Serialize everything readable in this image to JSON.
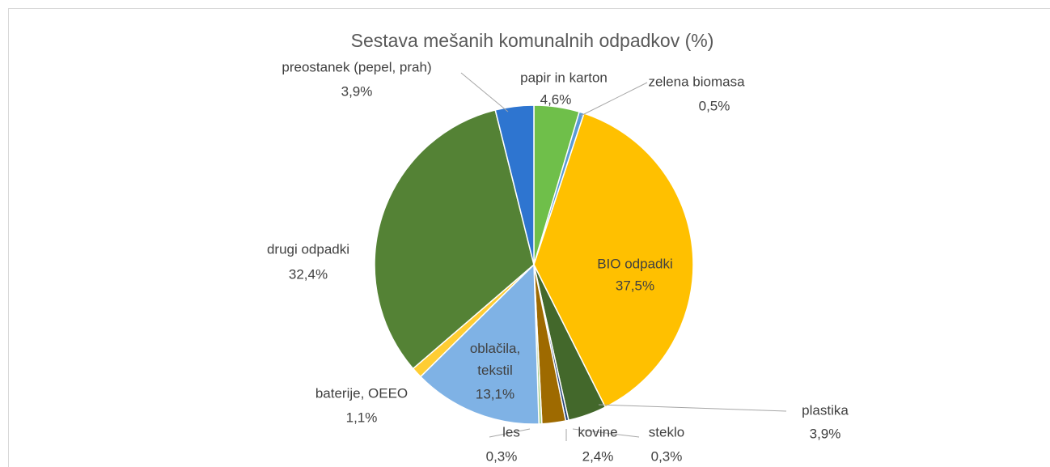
{
  "chart_data": {
    "type": "pie",
    "title": "Sestava mešanih komunalnih odpadkov (%)",
    "categories": [
      "papir in karton",
      "zelena biomasa",
      "BIO odpadki",
      "plastika",
      "steklo",
      "kovine",
      "les",
      "oblačila, tekstil",
      "baterije, OEEO",
      "drugi odpadki",
      "preostanek (pepel, prah)"
    ],
    "values": [
      4.6,
      0.5,
      37.5,
      3.9,
      0.3,
      2.4,
      0.3,
      13.1,
      1.1,
      32.4,
      3.9
    ],
    "value_labels": [
      "4,6%",
      "0,5%",
      "37,5%",
      "3,9%",
      "0,3%",
      "2,4%",
      "0,3%",
      "13,1%",
      "1,1%",
      "32,4%",
      "3,9%"
    ],
    "colors": [
      "#6fbf4a",
      "#5b9bd5",
      "#ffc000",
      "#43682b",
      "#264478",
      "#9e6a00",
      "#a9d18e",
      "#7fb2e5",
      "#ffcd33",
      "#548235",
      "#2e75d0"
    ]
  }
}
